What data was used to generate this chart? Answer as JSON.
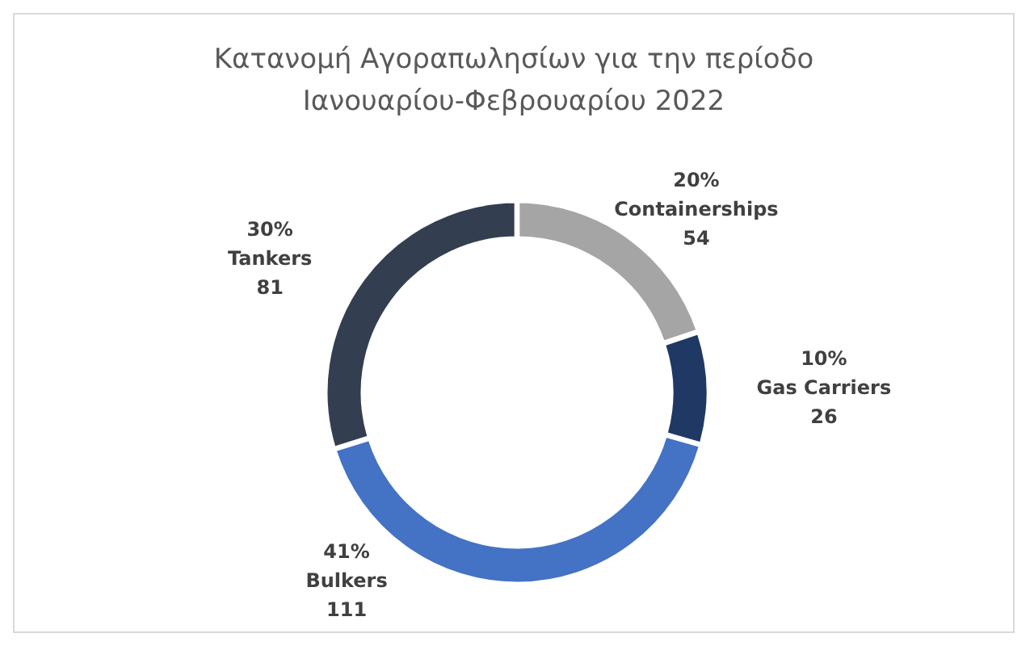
{
  "chart_data": {
    "type": "donut",
    "title": "Κατανομή Αγοραπωλησίων για την περίοδο Ιανουαρίου-Φεβρουαρίου 2022",
    "categories": [
      "Containerships",
      "Gas Carriers",
      "Bulkers",
      "Tankers"
    ],
    "values": [
      54,
      26,
      111,
      81
    ],
    "colors": [
      "#a5a5a5",
      "#203864",
      "#4472c4",
      "#333f50"
    ],
    "annotations": [
      "20%",
      "10%",
      "41%",
      "30%"
    ],
    "data_labels": true
  }
}
